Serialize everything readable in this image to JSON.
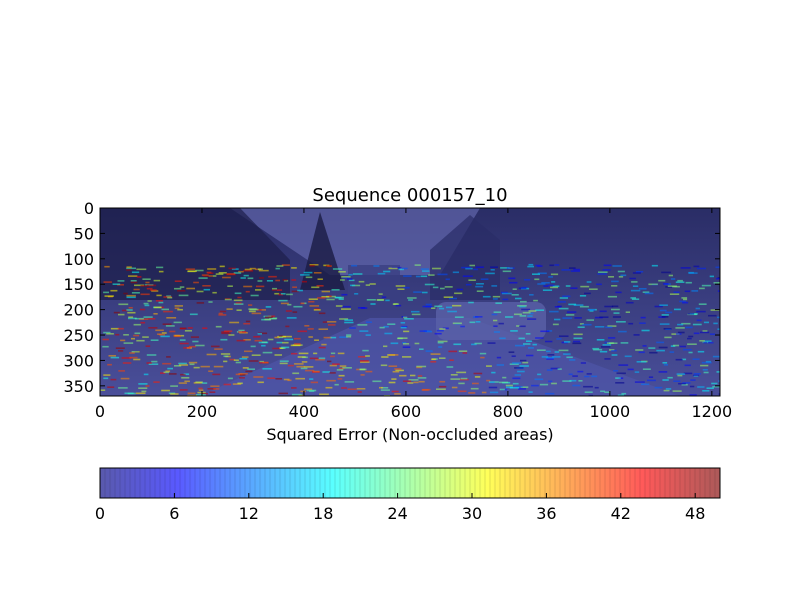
{
  "chart_data": [
    {
      "type": "heatmap",
      "title": "Sequence 000157_10",
      "xlabel": "Squared Error (Non-occluded areas)",
      "ylabel": "",
      "xlim": [
        0,
        1216
      ],
      "ylim": [
        370,
        0
      ],
      "x_ticks": [
        0,
        200,
        400,
        600,
        800,
        1000,
        1200
      ],
      "y_ticks": [
        0,
        50,
        100,
        150,
        200,
        250,
        300,
        350
      ],
      "colormap": "jet",
      "overlay_alpha": 0.5,
      "background": "road scene image (street with houses, parked cars, trees) overlaid with sparse squared-error points"
    },
    {
      "type": "colorbar",
      "orientation": "horizontal",
      "colormap": "jet",
      "vmin": 0,
      "vmax": 50,
      "ticks": [
        0,
        6,
        12,
        18,
        24,
        30,
        36,
        42,
        48
      ]
    }
  ],
  "colors": {
    "jet": [
      "#00007f",
      "#0000ff",
      "#007fff",
      "#00ffff",
      "#7fff7f",
      "#ffff00",
      "#ff7f00",
      "#ff0000",
      "#7f0000"
    ],
    "sky": "#2c2f6e",
    "road": "#3e4690",
    "axes": "#000000"
  }
}
